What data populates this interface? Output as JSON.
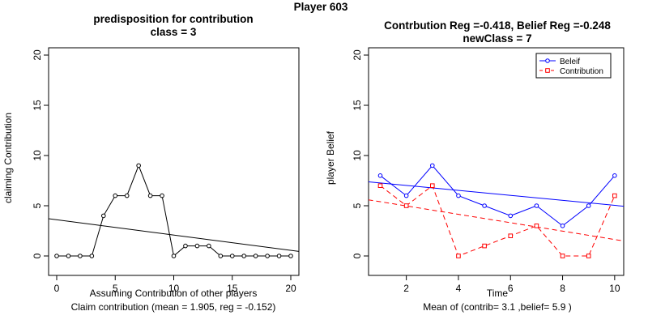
{
  "main_title": "Player 603",
  "chart_data": [
    {
      "type": "line",
      "title": "predisposition for contribution",
      "subtitle": "class = 3",
      "xlabel": "Assuming Contribution of other players",
      "ylabel": "claiming Contribution",
      "caption": "Claim contribution (mean = 1.905, reg = -0.152)",
      "xlim": [
        0,
        20
      ],
      "ylim": [
        0,
        20
      ],
      "xticks": [
        "0",
        "5",
        "10",
        "15",
        "20"
      ],
      "yticks": [
        "0",
        "5",
        "10",
        "15",
        "20"
      ],
      "y_tick_rotation": "vertical",
      "grid": false,
      "x": [
        0,
        1,
        2,
        3,
        4,
        5,
        6,
        7,
        8,
        9,
        10,
        11,
        12,
        13,
        14,
        15,
        16,
        17,
        18,
        19,
        20
      ],
      "series": [
        {
          "values": [
            0,
            0,
            0,
            0,
            4,
            6,
            6,
            9,
            6,
            6,
            0,
            1,
            1,
            1,
            0,
            0,
            0,
            0,
            0,
            0,
            0
          ],
          "color": "#000000",
          "marker": "open-circle"
        }
      ],
      "regression_line": {
        "intercept": 3.6,
        "slope": -0.152,
        "color": "#000000"
      }
    },
    {
      "type": "line",
      "title": "Contrbution Reg =-0.418, Belief Reg =-0.248",
      "subtitle": "newClass = 7",
      "xlabel": "Time",
      "ylabel": "player Belief",
      "caption": "Mean of (contrib= 3.1  ,belief= 5.9 )",
      "xlim": [
        1,
        10
      ],
      "ylim": [
        0,
        20
      ],
      "xticks": [
        "2",
        "4",
        "6",
        "8",
        "10"
      ],
      "yticks": [
        "0",
        "5",
        "10",
        "15",
        "20"
      ],
      "y_tick_rotation": "vertical",
      "grid": false,
      "legend_position": "top-right",
      "x": [
        1,
        2,
        3,
        4,
        5,
        6,
        7,
        8,
        9,
        10
      ],
      "series": [
        {
          "name": "Beleif",
          "values": [
            8,
            6,
            9,
            6,
            5,
            4,
            5,
            3,
            5,
            8
          ],
          "color": "#0000ff",
          "marker": "open-circle",
          "dash": "solid"
        },
        {
          "name": "Contribution",
          "values": [
            7,
            5,
            7,
            0,
            1,
            2,
            3,
            0,
            0,
            6
          ],
          "color": "#ff0000",
          "marker": "open-square",
          "dash": "dashed"
        }
      ],
      "regression_lines": [
        {
          "series": "Beleif",
          "intercept": 7.27,
          "slope": -0.248,
          "color": "#0000ff",
          "dash": "solid"
        },
        {
          "series": "Contribution",
          "intercept": 5.4,
          "slope": -0.418,
          "color": "#ff0000",
          "dash": "dashed"
        }
      ]
    }
  ]
}
